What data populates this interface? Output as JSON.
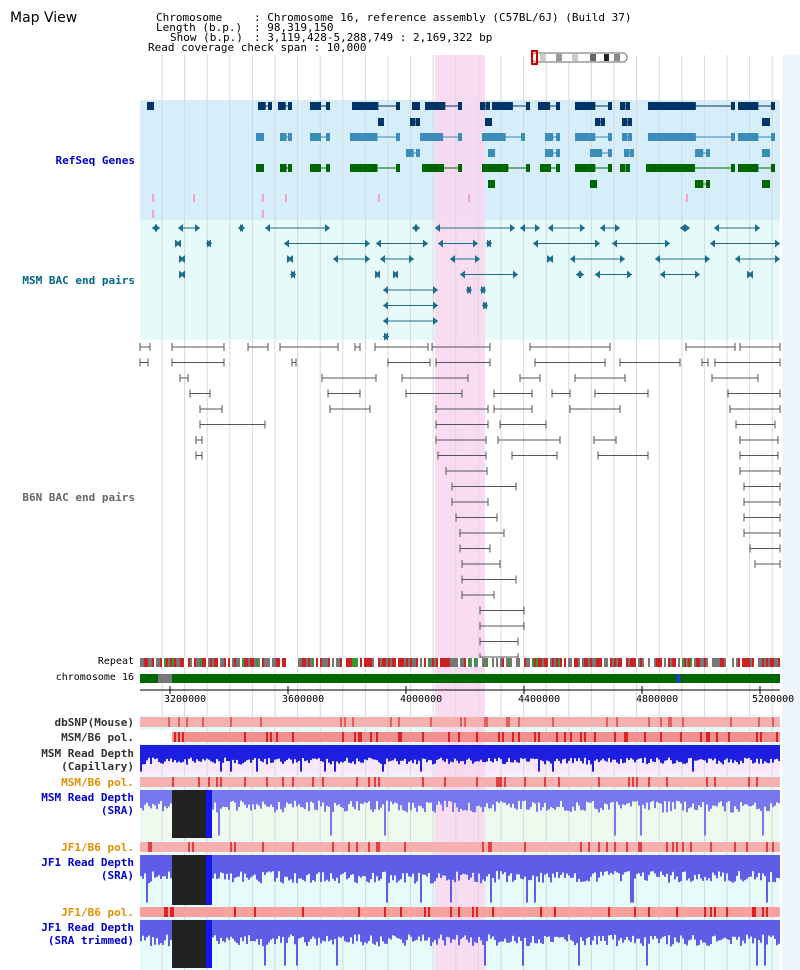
{
  "map_view": {
    "title": "Map View"
  },
  "info": {
    "chromosome_key": "Chromosome",
    "chromosome_val": ": Chromosome 16, reference assembly (C57BL/6J) (Build 37)",
    "length_key": "Length (b.p.)",
    "length_val": ": 98,319,150",
    "show_key": "Show (b.p.)",
    "show_val": ": 3,119,428-5,288,749 : 2,169,322 bp",
    "coverage": "Read coverage check span : 10,000"
  },
  "tracks": {
    "refseq": {
      "label": "RefSeq Genes",
      "color": "#0000cc"
    },
    "msm_bac": {
      "label": "MSM BAC end pairs",
      "color": "#006688"
    },
    "b6n_bac": {
      "label": "B6N BAC end pairs",
      "color": "#666666"
    },
    "repeat": {
      "label": "Repeat"
    },
    "chromosome": {
      "label": "chromosome 16"
    },
    "dbsnp": {
      "label": "dbSNP(Mouse)"
    },
    "msm_b6_pol1": {
      "label": "MSM/B6 pol."
    },
    "msm_depth_cap": {
      "label": "MSM Read Depth\n(Capillary)"
    },
    "msm_b6_pol2": {
      "label": "MSM/B6 pol.",
      "color": "#e09000"
    },
    "msm_depth_sra": {
      "label": "MSM Read Depth\n(SRA)",
      "color": "#0000cc"
    },
    "jf1_b6_pol1": {
      "label": "JF1/B6 pol.",
      "color": "#e09000"
    },
    "jf1_depth_sra": {
      "label": "JF1 Read Depth\n(SRA)",
      "color": "#0000cc"
    },
    "jf1_b6_pol2": {
      "label": "JF1/B6 pol.",
      "color": "#e09000"
    },
    "jf1_depth_trim": {
      "label": "JF1 Read Depth\n(SRA trimmed)",
      "color": "#0000cc"
    }
  },
  "axis": {
    "ticks": [
      "3200000",
      "3600000",
      "4000000",
      "4400000",
      "4800000",
      "5200000"
    ]
  },
  "colors": {
    "highlight": "#f9d6f0",
    "refseq_bg": "#d6eefa",
    "msm_bg": "#e6fafa",
    "gene_dark": "#003366",
    "gene_mid": "#3b8bbb",
    "gene_green": "#006600",
    "chrom_green": "#006600"
  }
}
